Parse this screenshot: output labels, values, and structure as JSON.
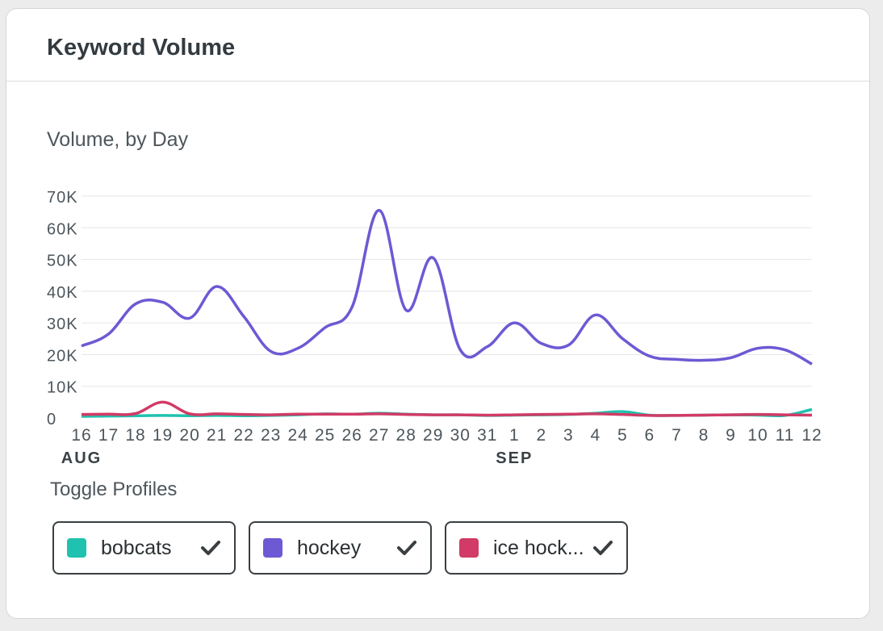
{
  "card": {
    "title": "Keyword Volume"
  },
  "chart": {
    "subtitle": "Volume, by Day"
  },
  "toggles": {
    "label": "Toggle Profiles",
    "items": [
      {
        "label": "bobcats",
        "color": "#1fc2ae",
        "checked": true,
        "icon": "check-icon"
      },
      {
        "label": "hockey",
        "color": "#6d59d4",
        "checked": true,
        "icon": "check-icon"
      },
      {
        "label": "ice hock...",
        "color": "#d13b66",
        "checked": true,
        "icon": "check-icon"
      }
    ]
  },
  "chart_data": {
    "type": "line",
    "title": "Volume, by Day",
    "xlabel": "",
    "ylabel": "",
    "x": [
      "16",
      "17",
      "18",
      "19",
      "20",
      "21",
      "22",
      "23",
      "24",
      "25",
      "26",
      "27",
      "28",
      "29",
      "30",
      "31",
      "1",
      "2",
      "3",
      "4",
      "5",
      "6",
      "7",
      "8",
      "9",
      "10",
      "11",
      "12"
    ],
    "month_labels": [
      {
        "label": "AUG",
        "at": "16"
      },
      {
        "label": "SEP",
        "at": "1"
      }
    ],
    "yticks": [
      "0",
      "10K",
      "20K",
      "30K",
      "40K",
      "50K",
      "60K",
      "70K"
    ],
    "ylim": [
      0,
      70000
    ],
    "grid": true,
    "series": [
      {
        "name": "hockey",
        "color": "#6d59d4",
        "values": [
          22700,
          26500,
          36000,
          36500,
          31500,
          41500,
          32000,
          21000,
          22000,
          28500,
          35000,
          65500,
          34000,
          50500,
          21500,
          22500,
          30000,
          23500,
          23000,
          32500,
          25000,
          19500,
          18500,
          18200,
          19000,
          22000,
          21500,
          17000
        ]
      },
      {
        "name": "bobcats",
        "color": "#1fc2ae",
        "values": [
          500,
          600,
          700,
          800,
          700,
          800,
          700,
          800,
          1000,
          1300,
          1200,
          1500,
          1200,
          1000,
          1000,
          800,
          900,
          1000,
          1100,
          1500,
          2000,
          900,
          800,
          900,
          1000,
          900,
          800,
          2700
        ]
      },
      {
        "name": "ice hock...",
        "color": "#d13b66",
        "values": [
          1100,
          1200,
          1400,
          5000,
          1300,
          1300,
          1100,
          1000,
          1200,
          1200,
          1200,
          1300,
          1100,
          1000,
          1000,
          900,
          1000,
          1100,
          1200,
          1300,
          1100,
          800,
          800,
          900,
          1000,
          1100,
          1000,
          900
        ]
      }
    ]
  }
}
